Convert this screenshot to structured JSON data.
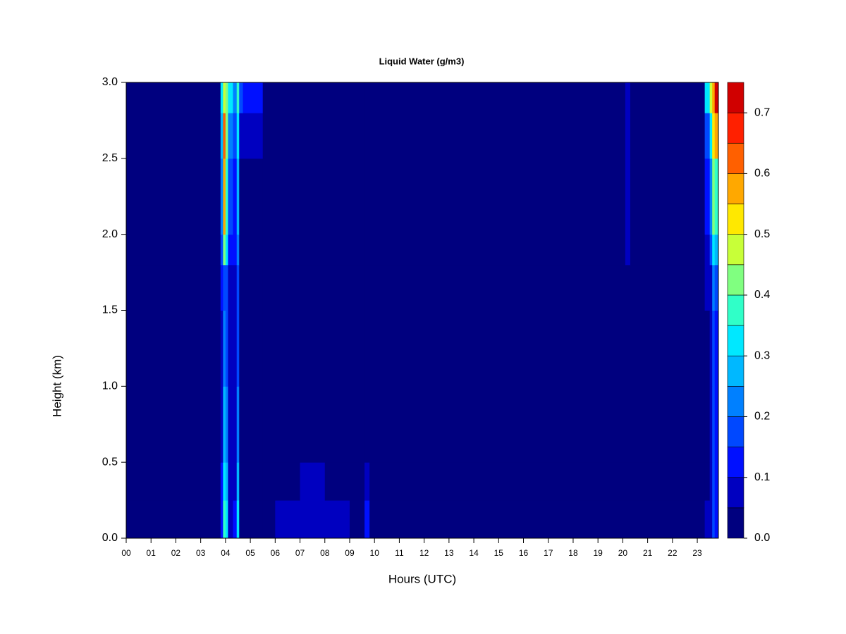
{
  "chart_data": {
    "type": "contour",
    "title": "Liquid Water (g/m3)",
    "x_label": "Hours (UTC)",
    "y_label": "Height (km)",
    "xlim": [
      0,
      23.85
    ],
    "ylim": [
      0,
      3.0
    ],
    "xticks": [
      {
        "value": 0,
        "label": "00"
      },
      {
        "value": 1,
        "label": "01"
      },
      {
        "value": 2,
        "label": "02"
      },
      {
        "value": 3,
        "label": "03"
      },
      {
        "value": 4,
        "label": "04"
      },
      {
        "value": 5,
        "label": "05"
      },
      {
        "value": 6,
        "label": "06"
      },
      {
        "value": 7,
        "label": "07"
      },
      {
        "value": 8,
        "label": "08"
      },
      {
        "value": 9,
        "label": "09"
      },
      {
        "value": 10,
        "label": "10"
      },
      {
        "value": 11,
        "label": "11"
      },
      {
        "value": 12,
        "label": "12"
      },
      {
        "value": 13,
        "label": "13"
      },
      {
        "value": 14,
        "label": "14"
      },
      {
        "value": 15,
        "label": "15"
      },
      {
        "value": 16,
        "label": "16"
      },
      {
        "value": 17,
        "label": "17"
      },
      {
        "value": 18,
        "label": "18"
      },
      {
        "value": 19,
        "label": "19"
      },
      {
        "value": 20,
        "label": "20"
      },
      {
        "value": 21,
        "label": "21"
      },
      {
        "value": 22,
        "label": "22"
      },
      {
        "value": 23,
        "label": "23"
      }
    ],
    "yticks": [
      {
        "value": 0,
        "label": "0.0"
      },
      {
        "value": 0.5,
        "label": "0.5"
      },
      {
        "value": 1,
        "label": "1.0"
      },
      {
        "value": 1.5,
        "label": "1.5"
      },
      {
        "value": 2,
        "label": "2.0"
      },
      {
        "value": 2.5,
        "label": "2.5"
      },
      {
        "value": 3,
        "label": "3.0"
      }
    ],
    "x_bins": [
      0,
      3.8,
      3.9,
      4.0,
      4.1,
      4.3,
      4.45,
      4.55,
      4.7,
      5.5,
      6.0,
      7.0,
      8.0,
      9.0,
      9.6,
      9.8,
      20.1,
      20.3,
      23.3,
      23.5,
      23.6,
      23.7,
      23.85
    ],
    "y_bins": [
      0,
      0.25,
      0.5,
      1.0,
      1.5,
      1.8,
      2.0,
      2.5,
      2.8,
      3.0
    ],
    "z": [
      [
        0.02,
        0.12,
        0.35,
        0.3,
        0.08,
        0.1,
        0.3,
        0.02,
        0.02,
        0.02,
        0.07,
        0.08,
        0.06,
        0.02,
        0.1,
        0.02,
        0.02,
        0.02,
        0.06,
        0.08,
        0.15,
        0.1
      ],
      [
        0.02,
        0.1,
        0.3,
        0.25,
        0.06,
        0.08,
        0.25,
        0.02,
        0.02,
        0.02,
        0.04,
        0.06,
        0.04,
        0.02,
        0.06,
        0.02,
        0.02,
        0.02,
        0.04,
        0.06,
        0.15,
        0.1
      ],
      [
        0.02,
        0.08,
        0.25,
        0.2,
        0.05,
        0.07,
        0.2,
        0.02,
        0.02,
        0.02,
        0.02,
        0.03,
        0.02,
        0.02,
        0.02,
        0.02,
        0.02,
        0.02,
        0.04,
        0.06,
        0.15,
        0.1
      ],
      [
        0.02,
        0.08,
        0.2,
        0.15,
        0.05,
        0.06,
        0.15,
        0.02,
        0.02,
        0.02,
        0.02,
        0.02,
        0.02,
        0.02,
        0.02,
        0.02,
        0.02,
        0.02,
        0.04,
        0.06,
        0.15,
        0.12
      ],
      [
        0.02,
        0.1,
        0.18,
        0.15,
        0.06,
        0.07,
        0.15,
        0.02,
        0.02,
        0.02,
        0.02,
        0.02,
        0.02,
        0.02,
        0.02,
        0.02,
        0.02,
        0.02,
        0.05,
        0.08,
        0.2,
        0.15
      ],
      [
        0.02,
        0.15,
        0.42,
        0.3,
        0.1,
        0.1,
        0.2,
        0.02,
        0.02,
        0.02,
        0.02,
        0.02,
        0.02,
        0.02,
        0.02,
        0.02,
        0.05,
        0.02,
        0.06,
        0.15,
        0.3,
        0.25
      ],
      [
        0.02,
        0.2,
        0.58,
        0.35,
        0.15,
        0.12,
        0.25,
        0.03,
        0.04,
        0.02,
        0.02,
        0.02,
        0.02,
        0.02,
        0.02,
        0.02,
        0.06,
        0.02,
        0.1,
        0.2,
        0.4,
        0.35
      ],
      [
        0.02,
        0.25,
        0.62,
        0.4,
        0.2,
        0.15,
        0.3,
        0.05,
        0.08,
        0.02,
        0.02,
        0.02,
        0.02,
        0.02,
        0.02,
        0.02,
        0.07,
        0.02,
        0.15,
        0.3,
        0.5,
        0.55
      ],
      [
        0.02,
        0.3,
        0.48,
        0.4,
        0.3,
        0.2,
        0.35,
        0.15,
        0.12,
        0.02,
        0.02,
        0.02,
        0.02,
        0.02,
        0.02,
        0.02,
        0.08,
        0.02,
        0.3,
        0.45,
        0.55,
        0.7
      ]
    ],
    "levels": [
      0,
      0.05,
      0.1,
      0.15,
      0.2,
      0.25,
      0.3,
      0.35,
      0.4,
      0.45,
      0.5,
      0.55,
      0.6,
      0.65,
      0.7,
      0.75
    ],
    "colors": [
      "#00007f",
      "#0000c0",
      "#0010ff",
      "#0048ff",
      "#0080ff",
      "#00b8ff",
      "#00e8ff",
      "#30ffc8",
      "#80ff80",
      "#c8ff38",
      "#ffe800",
      "#ffa800",
      "#ff6000",
      "#ff2000",
      "#d00000",
      "#800000"
    ],
    "colorbar_ticks": [
      {
        "value": 0,
        "label": "0.0"
      },
      {
        "value": 0.1,
        "label": "0.1"
      },
      {
        "value": 0.2,
        "label": "0.2"
      },
      {
        "value": 0.3,
        "label": "0.3"
      },
      {
        "value": 0.4,
        "label": "0.4"
      },
      {
        "value": 0.5,
        "label": "0.5"
      },
      {
        "value": 0.6,
        "label": "0.6"
      },
      {
        "value": 0.7,
        "label": "0.7"
      }
    ]
  }
}
